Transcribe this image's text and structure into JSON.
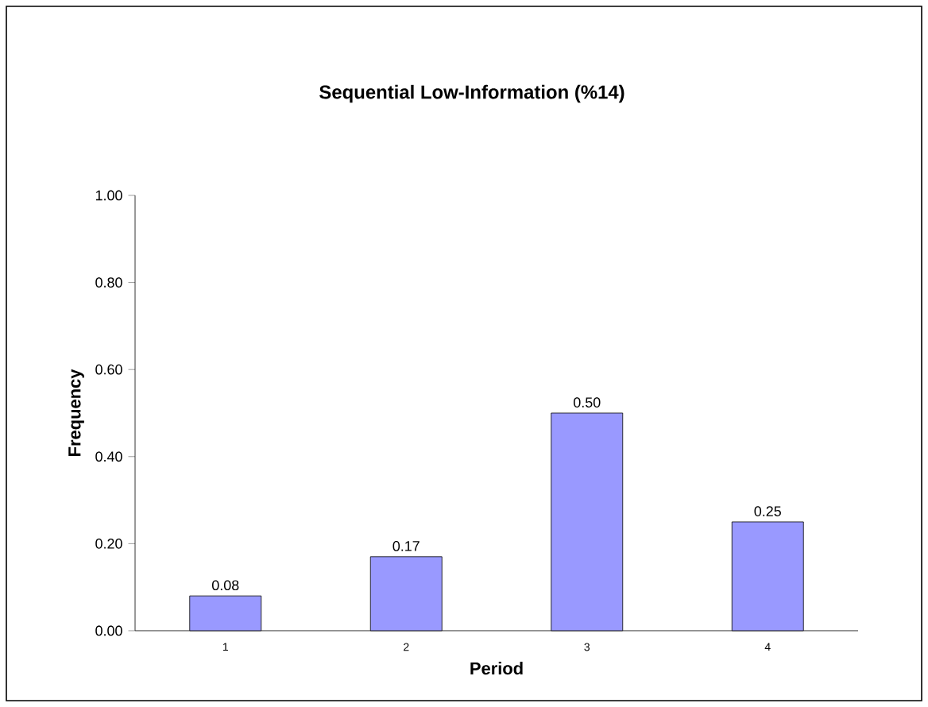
{
  "chart_data": {
    "type": "bar",
    "title": "Sequential Low-Information (%14)",
    "xlabel": "Period",
    "ylabel": "Frequency",
    "categories": [
      "1",
      "2",
      "3",
      "4"
    ],
    "values": [
      0.08,
      0.17,
      0.5,
      0.25
    ],
    "value_labels": [
      "0.08",
      "0.17",
      "0.50",
      "0.25"
    ],
    "color": "#9999ff",
    "ylim": [
      0,
      1
    ],
    "yticks": [
      {
        "value": 0,
        "label": "0.00"
      },
      {
        "value": 0.2,
        "label": "0.20"
      },
      {
        "value": 0.4,
        "label": "0.40"
      },
      {
        "value": 0.6,
        "label": "0.60"
      },
      {
        "value": 0.8,
        "label": "0.80"
      },
      {
        "value": 1,
        "label": "1.00"
      }
    ],
    "grid": false
  }
}
